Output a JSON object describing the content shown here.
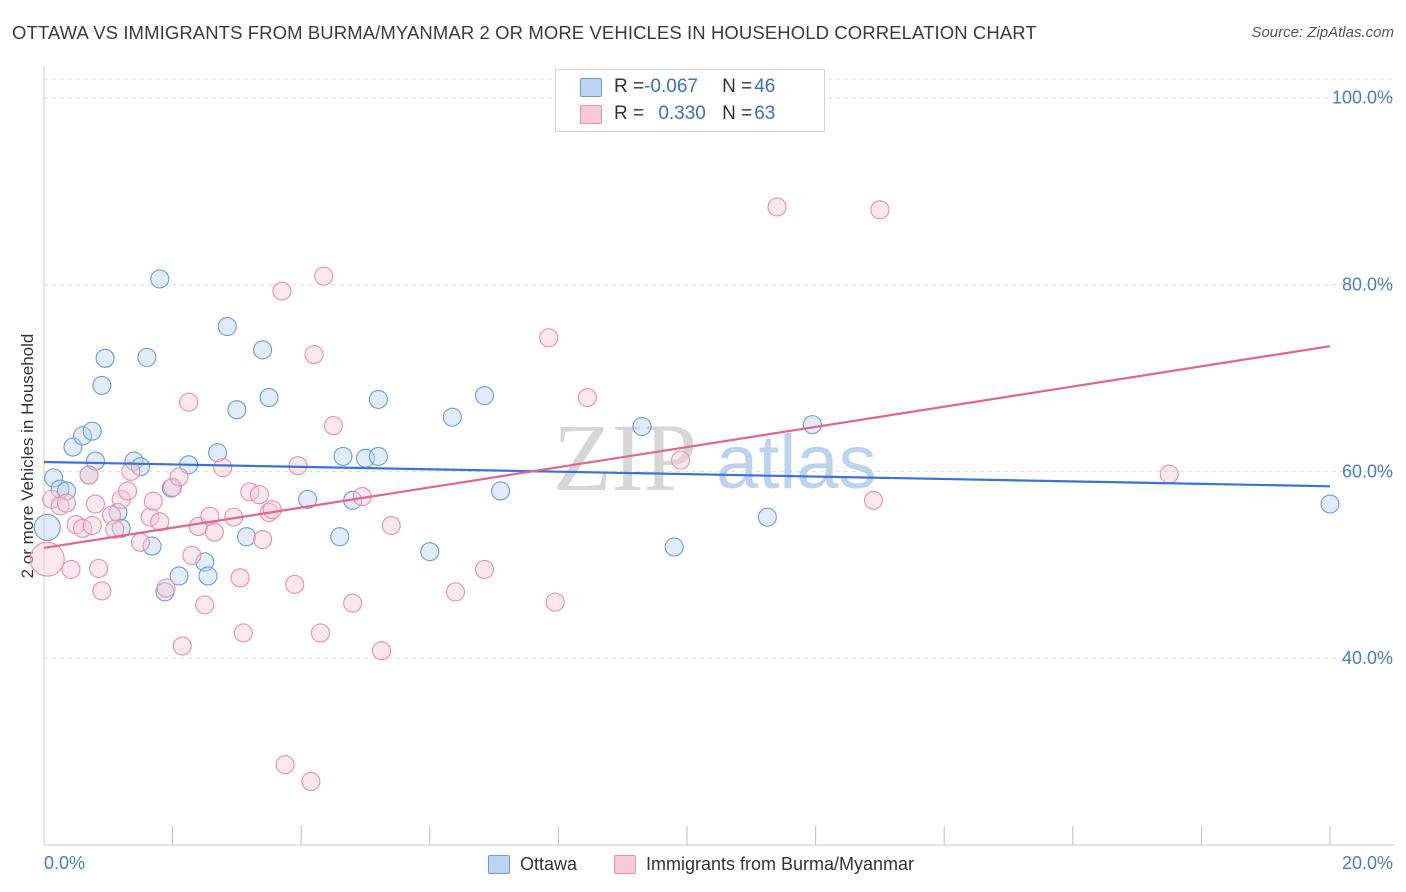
{
  "title": "OTTAWA VS IMMIGRANTS FROM BURMA/MYANMAR 2 OR MORE VEHICLES IN HOUSEHOLD CORRELATION CHART",
  "source": "Source: ZipAtlas.com",
  "watermark": {
    "zip": "ZIP",
    "atlas": "atlas"
  },
  "legend": {
    "ottawa": {
      "r_label": "R = ",
      "r_value": "-0.067",
      "n_label": "N = ",
      "n_value": "46"
    },
    "burma": {
      "r_label": "R = ",
      "r_value": "0.330",
      "n_label": "N = ",
      "n_value": "63"
    }
  },
  "colors": {
    "ottawa_fill": "#bcd3f1",
    "ottawa_stroke": "#6a9be0",
    "ottawa_line": "#3a74d0",
    "burma_fill": "#f8c9d8",
    "burma_stroke": "#ea8fac",
    "burma_line": "#e0668f",
    "tick_text": "#4a7cc9",
    "grid": "#dddddd"
  },
  "chart_data": {
    "type": "scatter",
    "title": "OTTAWA VS IMMIGRANTS FROM BURMA/MYANMAR 2 OR MORE VEHICLES IN HOUSEHOLD CORRELATION CHART",
    "xlabel": "",
    "ylabel": "2 or more Vehicles in Household",
    "xlim": [
      0,
      20
    ],
    "ylim": [
      20,
      102
    ],
    "x_tick_labels": [
      "0.0%",
      "20.0%"
    ],
    "y_ticks": [
      40,
      60,
      80,
      100
    ],
    "y_tick_labels": [
      "40.0%",
      "60.0%",
      "80.0%",
      "100.0%"
    ],
    "grid": true,
    "legend_position": "top-center",
    "series": [
      {
        "name": "Ottawa",
        "color": "#6a9be0",
        "trend": {
          "x": [
            0,
            20
          ],
          "y": [
            61.0,
            58.4
          ]
        },
        "points": [
          [
            0.05,
            54.0
          ],
          [
            0.15,
            59.3
          ],
          [
            0.25,
            58.1
          ],
          [
            0.35,
            57.9
          ],
          [
            0.45,
            62.6
          ],
          [
            0.6,
            63.8
          ],
          [
            0.7,
            59.6
          ],
          [
            0.75,
            64.3
          ],
          [
            0.8,
            61.1
          ],
          [
            0.9,
            69.2
          ],
          [
            0.95,
            72.1
          ],
          [
            1.15,
            55.6
          ],
          [
            1.2,
            53.9
          ],
          [
            1.4,
            61.1
          ],
          [
            1.5,
            60.5
          ],
          [
            1.6,
            72.2
          ],
          [
            1.68,
            52.0
          ],
          [
            1.8,
            80.6
          ],
          [
            1.88,
            47.1
          ],
          [
            1.98,
            58.2
          ],
          [
            2.1,
            48.8
          ],
          [
            2.25,
            60.7
          ],
          [
            2.5,
            50.3
          ],
          [
            2.55,
            48.8
          ],
          [
            2.7,
            62.0
          ],
          [
            2.85,
            75.5
          ],
          [
            3.0,
            66.6
          ],
          [
            3.15,
            53.0
          ],
          [
            3.4,
            73.0
          ],
          [
            3.5,
            67.9
          ],
          [
            4.1,
            57.0
          ],
          [
            4.6,
            53.0
          ],
          [
            4.65,
            61.6
          ],
          [
            4.8,
            56.9
          ],
          [
            5.0,
            61.4
          ],
          [
            5.2,
            61.6
          ],
          [
            5.2,
            67.7
          ],
          [
            6.0,
            51.4
          ],
          [
            6.35,
            65.8
          ],
          [
            6.85,
            68.1
          ],
          [
            7.1,
            57.9
          ],
          [
            9.3,
            64.8
          ],
          [
            9.8,
            51.9
          ],
          [
            11.25,
            55.1
          ],
          [
            11.95,
            65.0
          ],
          [
            20.0,
            56.5
          ]
        ]
      },
      {
        "name": "Immigrants from Burma/Myanmar",
        "color": "#ea8fac",
        "trend": {
          "x": [
            0,
            20
          ],
          "y": [
            51.8,
            73.4
          ]
        },
        "points": [
          [
            0.05,
            50.6
          ],
          [
            0.12,
            57.0
          ],
          [
            0.25,
            56.3
          ],
          [
            0.35,
            56.6
          ],
          [
            0.42,
            49.5
          ],
          [
            0.5,
            54.3
          ],
          [
            0.6,
            53.9
          ],
          [
            0.7,
            59.6
          ],
          [
            0.75,
            54.2
          ],
          [
            0.8,
            56.5
          ],
          [
            0.85,
            49.6
          ],
          [
            0.9,
            47.2
          ],
          [
            1.05,
            55.3
          ],
          [
            1.1,
            53.8
          ],
          [
            1.2,
            57.0
          ],
          [
            1.3,
            57.9
          ],
          [
            1.35,
            60.0
          ],
          [
            1.5,
            52.4
          ],
          [
            1.65,
            55.1
          ],
          [
            1.7,
            56.8
          ],
          [
            1.8,
            54.6
          ],
          [
            1.9,
            47.5
          ],
          [
            2.0,
            58.3
          ],
          [
            2.1,
            59.4
          ],
          [
            2.15,
            41.3
          ],
          [
            2.25,
            67.4
          ],
          [
            2.3,
            51.0
          ],
          [
            2.4,
            54.1
          ],
          [
            2.5,
            45.7
          ],
          [
            2.58,
            55.2
          ],
          [
            2.65,
            53.5
          ],
          [
            2.78,
            60.4
          ],
          [
            2.95,
            55.1
          ],
          [
            3.05,
            48.6
          ],
          [
            3.1,
            42.7
          ],
          [
            3.2,
            57.8
          ],
          [
            3.35,
            57.5
          ],
          [
            3.4,
            52.7
          ],
          [
            3.5,
            55.6
          ],
          [
            3.55,
            55.9
          ],
          [
            3.7,
            79.3
          ],
          [
            3.75,
            28.6
          ],
          [
            3.9,
            47.9
          ],
          [
            3.95,
            60.6
          ],
          [
            4.15,
            26.8
          ],
          [
            4.2,
            72.5
          ],
          [
            4.3,
            42.7
          ],
          [
            4.35,
            80.9
          ],
          [
            4.5,
            64.9
          ],
          [
            4.8,
            45.9
          ],
          [
            4.95,
            57.3
          ],
          [
            5.25,
            40.8
          ],
          [
            5.4,
            54.2
          ],
          [
            6.4,
            47.1
          ],
          [
            6.85,
            49.5
          ],
          [
            7.85,
            74.3
          ],
          [
            7.95,
            46.0
          ],
          [
            8.45,
            67.9
          ],
          [
            9.9,
            61.2
          ],
          [
            11.4,
            88.3
          ],
          [
            12.9,
            56.9
          ],
          [
            13.0,
            88.0
          ],
          [
            17.5,
            59.7
          ]
        ]
      }
    ]
  }
}
